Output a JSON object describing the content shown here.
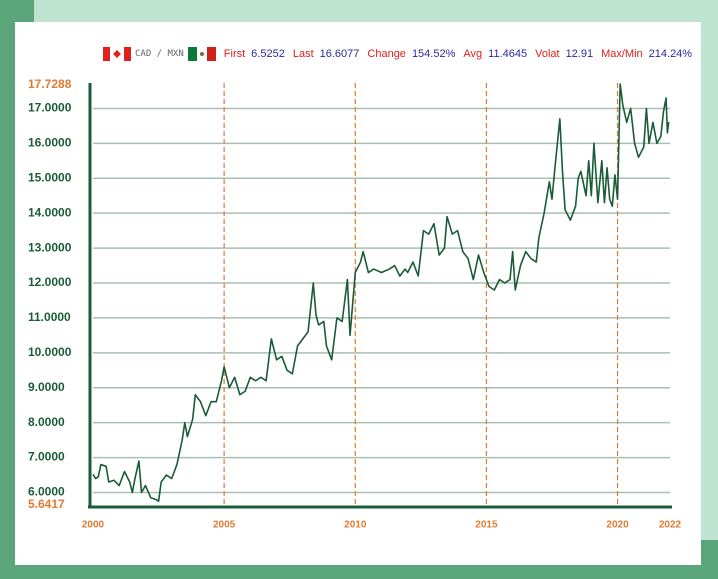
{
  "header": {
    "pair": "CAD / MXN",
    "stats": [
      {
        "label": "First",
        "value": "6.5252"
      },
      {
        "label": "Last",
        "value": "16.6077"
      },
      {
        "label": "Change",
        "value": "154.52%"
      },
      {
        "label": "Avg",
        "value": "11.4645"
      },
      {
        "label": "Volat",
        "value": "12.91"
      },
      {
        "label": "Max/Min",
        "value": "214.24%"
      }
    ]
  },
  "chart_data": {
    "type": "line",
    "color": "#1a5c38",
    "xlim": [
      2000,
      2022
    ],
    "xticks": [
      2000,
      2005,
      2010,
      2015,
      2020,
      2022
    ],
    "ylim": [
      5.6417,
      17.7288
    ],
    "yticks": [
      {
        "value": 6,
        "label": "6.0000"
      },
      {
        "value": 7,
        "label": "7.0000"
      },
      {
        "value": 8,
        "label": "8.0000"
      },
      {
        "value": 9,
        "label": "9.0000"
      },
      {
        "value": 10,
        "label": "10.0000"
      },
      {
        "value": 11,
        "label": "11.0000"
      },
      {
        "value": 12,
        "label": "12.0000"
      },
      {
        "value": 13,
        "label": "13.0000"
      },
      {
        "value": 14,
        "label": "14.0000"
      },
      {
        "value": 15,
        "label": "15.0000"
      },
      {
        "value": 16,
        "label": "16.0000"
      },
      {
        "value": 17,
        "label": "17.0000"
      }
    ],
    "grid": true,
    "x": [
      2000.0,
      2000.1,
      2000.2,
      2000.3,
      2000.5,
      2000.6,
      2000.8,
      2001.0,
      2001.2,
      2001.4,
      2001.5,
      2001.6,
      2001.75,
      2001.85,
      2002.0,
      2002.2,
      2002.4,
      2002.5,
      2002.6,
      2002.8,
      2003.0,
      2003.2,
      2003.4,
      2003.5,
      2003.6,
      2003.8,
      2003.9,
      2004.1,
      2004.3,
      2004.5,
      2004.7,
      2004.9,
      2005.0,
      2005.2,
      2005.4,
      2005.6,
      2005.8,
      2006.0,
      2006.2,
      2006.4,
      2006.6,
      2006.8,
      2007.0,
      2007.2,
      2007.4,
      2007.6,
      2007.8,
      2008.0,
      2008.2,
      2008.4,
      2008.5,
      2008.6,
      2008.8,
      2008.9,
      2009.1,
      2009.3,
      2009.5,
      2009.7,
      2009.8,
      2010.0,
      2010.2,
      2010.3,
      2010.5,
      2010.7,
      2011.0,
      2011.3,
      2011.5,
      2011.7,
      2011.9,
      2012.0,
      2012.2,
      2012.4,
      2012.6,
      2012.8,
      2013.0,
      2013.2,
      2013.4,
      2013.5,
      2013.7,
      2013.9,
      2014.1,
      2014.3,
      2014.5,
      2014.7,
      2014.9,
      2015.1,
      2015.3,
      2015.5,
      2015.7,
      2015.9,
      2016.0,
      2016.1,
      2016.3,
      2016.5,
      2016.7,
      2016.9,
      2017.0,
      2017.2,
      2017.4,
      2017.5,
      2017.6,
      2017.8,
      2017.9,
      2018.0,
      2018.2,
      2018.4,
      2018.5,
      2018.6,
      2018.8,
      2018.9,
      2019.0,
      2019.1,
      2019.25,
      2019.4,
      2019.5,
      2019.6,
      2019.7,
      2019.8,
      2019.9,
      2020.0,
      2020.1,
      2020.2,
      2020.35,
      2020.5,
      2020.65,
      2020.8,
      2021.0,
      2021.1,
      2021.2,
      2021.35,
      2021.5,
      2021.65,
      2021.75,
      2021.85,
      2021.9,
      2021.95
    ],
    "series": [
      {
        "name": "CAD / MXN",
        "color": "#1a5c38",
        "values": [
          6.52,
          6.4,
          6.45,
          6.8,
          6.75,
          6.3,
          6.35,
          6.2,
          6.6,
          6.3,
          6.0,
          6.4,
          6.9,
          6.0,
          6.2,
          5.85,
          5.8,
          5.75,
          6.3,
          6.5,
          6.4,
          6.8,
          7.5,
          8.0,
          7.6,
          8.1,
          8.8,
          8.6,
          8.2,
          8.6,
          8.6,
          9.2,
          9.6,
          9.0,
          9.3,
          8.8,
          8.9,
          9.3,
          9.2,
          9.3,
          9.2,
          10.4,
          9.8,
          9.9,
          9.5,
          9.4,
          10.2,
          10.4,
          10.6,
          12.0,
          11.1,
          10.8,
          10.9,
          10.2,
          9.8,
          11.0,
          10.9,
          12.1,
          10.5,
          12.3,
          12.6,
          12.9,
          12.3,
          12.4,
          12.3,
          12.4,
          12.5,
          12.2,
          12.4,
          12.3,
          12.6,
          12.2,
          13.5,
          13.4,
          13.7,
          12.8,
          13.0,
          13.9,
          13.4,
          13.5,
          12.9,
          12.7,
          12.1,
          12.8,
          12.3,
          11.9,
          11.8,
          12.1,
          12.0,
          12.1,
          12.9,
          11.8,
          12.5,
          12.9,
          12.7,
          12.6,
          13.3,
          14.0,
          14.9,
          14.4,
          15.2,
          16.7,
          15.2,
          14.1,
          13.8,
          14.2,
          15.0,
          15.2,
          14.5,
          15.5,
          14.5,
          16.0,
          14.3,
          15.5,
          14.3,
          15.3,
          14.4,
          14.2,
          15.1,
          14.4,
          17.7,
          17.1,
          16.6,
          17.0,
          16.0,
          15.6,
          15.9,
          17.0,
          16.0,
          16.6,
          16.0,
          16.2,
          16.9,
          17.3,
          16.3,
          16.61
        ]
      }
    ]
  }
}
